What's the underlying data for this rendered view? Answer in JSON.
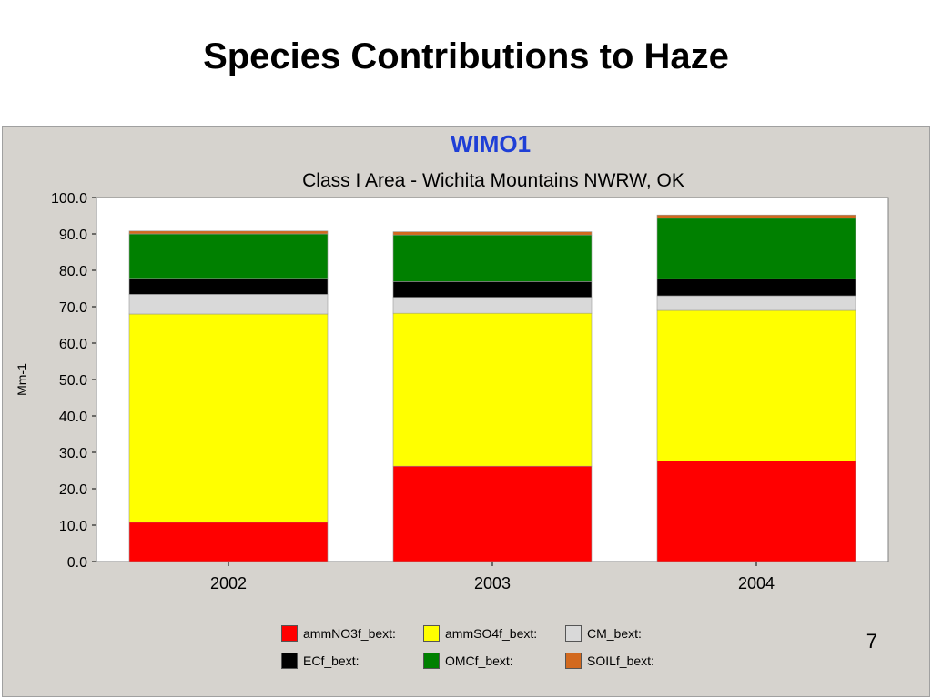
{
  "slide": {
    "title": "Species Contributions to Haze",
    "page_number": "7"
  },
  "chart_data": {
    "type": "bar",
    "stacked": true,
    "title": "WIMO1",
    "subtitle": "Class I Area - Wichita Mountains NWRW, OK",
    "xlabel": "",
    "ylabel": "Mm-1",
    "ylim": [
      0,
      100
    ],
    "yticks": [
      "0.0",
      "10.0",
      "20.0",
      "30.0",
      "40.0",
      "50.0",
      "60.0",
      "70.0",
      "80.0",
      "90.0",
      "100.0"
    ],
    "grid": false,
    "legend_position": "bottom",
    "categories": [
      "2002",
      "2003",
      "2004"
    ],
    "series": [
      {
        "name": "ammNO3f_bext:",
        "color": "#ff0000",
        "values": [
          10.8,
          26.2,
          27.6
        ]
      },
      {
        "name": "ammSO4f_bext:",
        "color": "#ffff00",
        "values": [
          57.2,
          42.0,
          41.4
        ]
      },
      {
        "name": "CM_bext:",
        "color": "#d9d9d9",
        "values": [
          5.4,
          4.4,
          4.0
        ]
      },
      {
        "name": "ECf_bext:",
        "color": "#000000",
        "values": [
          4.4,
          4.3,
          4.7
        ]
      },
      {
        "name": "OMCf_bext:",
        "color": "#008000",
        "values": [
          12.2,
          12.8,
          16.6
        ]
      },
      {
        "name": "SOILf_bext:",
        "color": "#d2691e",
        "values": [
          0.8,
          0.9,
          0.9
        ]
      }
    ]
  }
}
